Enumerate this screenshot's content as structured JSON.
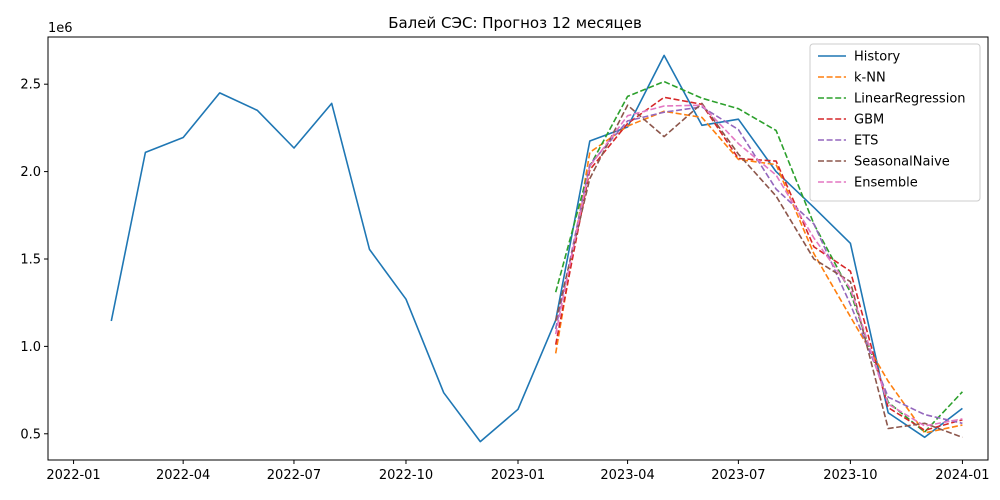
{
  "chart_data": {
    "type": "line",
    "title": "Балей СЭС: Прогноз 12 месяцев",
    "xlabel": "",
    "ylabel": "",
    "y_offset_label": "1e6",
    "xlim": [
      "2021-12-11",
      "2024-01-22"
    ],
    "ylim": [
      350000,
      2770000
    ],
    "grid": false,
    "legend_position": "top-right",
    "x_ticks": [
      {
        "date": "2022-01-01",
        "label": "2022-01"
      },
      {
        "date": "2022-04-01",
        "label": "2022-04"
      },
      {
        "date": "2022-07-01",
        "label": "2022-07"
      },
      {
        "date": "2022-10-01",
        "label": "2022-10"
      },
      {
        "date": "2023-01-01",
        "label": "2023-01"
      },
      {
        "date": "2023-04-01",
        "label": "2023-04"
      },
      {
        "date": "2023-07-01",
        "label": "2023-07"
      },
      {
        "date": "2023-10-01",
        "label": "2023-10"
      },
      {
        "date": "2024-01-01",
        "label": "2024-01"
      }
    ],
    "y_ticks": [
      {
        "value": 500000,
        "label": "0.5"
      },
      {
        "value": 1000000,
        "label": "1.0"
      },
      {
        "value": 1500000,
        "label": "1.5"
      },
      {
        "value": 2000000,
        "label": "2.0"
      },
      {
        "value": 2500000,
        "label": "2.5"
      }
    ],
    "series": [
      {
        "name": "History",
        "color": "#1f77b4",
        "dash": "solid",
        "x": [
          "2022-02-01",
          "2022-03-01",
          "2022-04-01",
          "2022-05-01",
          "2022-06-01",
          "2022-07-01",
          "2022-08-01",
          "2022-09-01",
          "2022-10-01",
          "2022-11-01",
          "2022-12-01",
          "2023-01-01",
          "2023-02-01",
          "2023-03-01",
          "2023-04-01",
          "2023-05-01",
          "2023-06-01",
          "2023-07-01",
          "2023-08-01",
          "2023-09-01",
          "2023-10-01",
          "2023-11-01",
          "2023-12-01",
          "2024-01-01"
        ],
        "y": [
          1145000,
          2110000,
          2195000,
          2450000,
          2350000,
          2135000,
          2390000,
          1555000,
          1270000,
          735000,
          455000,
          640000,
          1150000,
          2175000,
          2255000,
          2665000,
          2265000,
          2300000,
          2000000,
          1795000,
          1590000,
          620000,
          480000,
          645000
        ]
      },
      {
        "name": "k-NN",
        "color": "#ff7f0e",
        "dash": "dashed",
        "x": [
          "2023-02-01",
          "2023-03-01",
          "2023-04-01",
          "2023-05-01",
          "2023-06-01",
          "2023-07-01",
          "2023-08-01",
          "2023-09-01",
          "2023-10-01",
          "2023-11-01",
          "2023-12-01",
          "2024-01-01"
        ],
        "y": [
          960000,
          2110000,
          2260000,
          2345000,
          2310000,
          2070000,
          2040000,
          1530000,
          1170000,
          800000,
          505000,
          550000
        ]
      },
      {
        "name": "LinearRegression",
        "color": "#2ca02c",
        "dash": "dashed",
        "x": [
          "2023-02-01",
          "2023-03-01",
          "2023-04-01",
          "2023-05-01",
          "2023-06-01",
          "2023-07-01",
          "2023-08-01",
          "2023-09-01",
          "2023-10-01",
          "2023-11-01",
          "2023-12-01",
          "2024-01-01"
        ],
        "y": [
          1310000,
          2030000,
          2430000,
          2515000,
          2420000,
          2360000,
          2235000,
          1700000,
          1310000,
          680000,
          510000,
          740000
        ]
      },
      {
        "name": "GBM",
        "color": "#d62728",
        "dash": "dashed",
        "x": [
          "2023-02-01",
          "2023-03-01",
          "2023-04-01",
          "2023-05-01",
          "2023-06-01",
          "2023-07-01",
          "2023-08-01",
          "2023-09-01",
          "2023-10-01",
          "2023-11-01",
          "2023-12-01",
          "2024-01-01"
        ],
        "y": [
          1010000,
          2010000,
          2275000,
          2425000,
          2385000,
          2075000,
          2060000,
          1570000,
          1430000,
          650000,
          520000,
          580000
        ]
      },
      {
        "name": "ETS",
        "color": "#9467bd",
        "dash": "dashed",
        "x": [
          "2023-02-01",
          "2023-03-01",
          "2023-04-01",
          "2023-05-01",
          "2023-06-01",
          "2023-07-01",
          "2023-08-01",
          "2023-09-01",
          "2023-10-01",
          "2023-11-01",
          "2023-12-01",
          "2024-01-01"
        ],
        "y": [
          1100000,
          2040000,
          2290000,
          2340000,
          2370000,
          2240000,
          1900000,
          1700000,
          1240000,
          710000,
          610000,
          560000
        ]
      },
      {
        "name": "SeasonalNaive",
        "color": "#8c564b",
        "dash": "dashed",
        "x": [
          "2023-02-01",
          "2023-03-01",
          "2023-04-01",
          "2023-05-01",
          "2023-06-01",
          "2023-07-01",
          "2023-08-01",
          "2023-09-01",
          "2023-10-01",
          "2023-11-01",
          "2023-12-01",
          "2024-01-01"
        ],
        "y": [
          1145000,
          1960000,
          2380000,
          2200000,
          2390000,
          2100000,
          1860000,
          1500000,
          1370000,
          530000,
          560000,
          480000
        ]
      },
      {
        "name": "Ensemble",
        "color": "#e377c2",
        "dash": "dashed",
        "x": [
          "2023-02-01",
          "2023-03-01",
          "2023-04-01",
          "2023-05-01",
          "2023-06-01",
          "2023-07-01",
          "2023-08-01",
          "2023-09-01",
          "2023-10-01",
          "2023-11-01",
          "2023-12-01",
          "2024-01-01"
        ],
        "y": [
          1070000,
          2030000,
          2320000,
          2375000,
          2380000,
          2160000,
          1980000,
          1620000,
          1330000,
          670000,
          545000,
          585000
        ]
      }
    ]
  }
}
